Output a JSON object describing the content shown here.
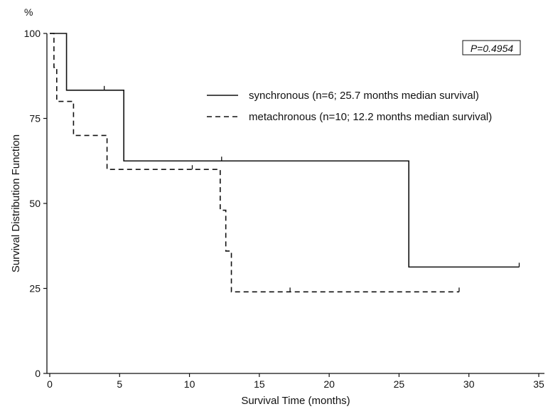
{
  "chart_data": {
    "type": "line",
    "title": "",
    "xlabel": "Survival Time (months)",
    "ylabel": "Survival Distribution Function",
    "yunit": "%",
    "xlim": [
      0,
      35
    ],
    "ylim": [
      0,
      100
    ],
    "xticks": [
      0,
      5,
      10,
      15,
      20,
      25,
      30,
      35
    ],
    "yticks": [
      0,
      25,
      50,
      75,
      100
    ],
    "grid": false,
    "legend_position": "top-right",
    "annotation": "P=0.4954",
    "series": [
      {
        "name": "synchronous (n=6; 25.7 months median survival)",
        "style": "solid",
        "color": "#111111",
        "steps": [
          [
            0,
            100
          ],
          [
            1.2,
            83.3
          ],
          [
            5.3,
            62.5
          ],
          [
            25.7,
            31.3
          ],
          [
            33.6,
            31.3
          ]
        ],
        "censored": [
          [
            3.9,
            83.3
          ],
          [
            12.3,
            62.5
          ],
          [
            33.6,
            31.3
          ]
        ]
      },
      {
        "name": "metachronous (n=10; 12.2 months median survival)",
        "style": "dashed",
        "color": "#111111",
        "steps": [
          [
            0,
            100
          ],
          [
            0.3,
            90
          ],
          [
            0.5,
            80
          ],
          [
            1.7,
            70
          ],
          [
            4.1,
            60
          ],
          [
            12.2,
            48
          ],
          [
            12.6,
            36
          ],
          [
            13.0,
            24
          ],
          [
            29.3,
            24
          ]
        ],
        "censored": [
          [
            10.2,
            60
          ],
          [
            17.2,
            24
          ],
          [
            29.3,
            24
          ]
        ]
      }
    ]
  }
}
